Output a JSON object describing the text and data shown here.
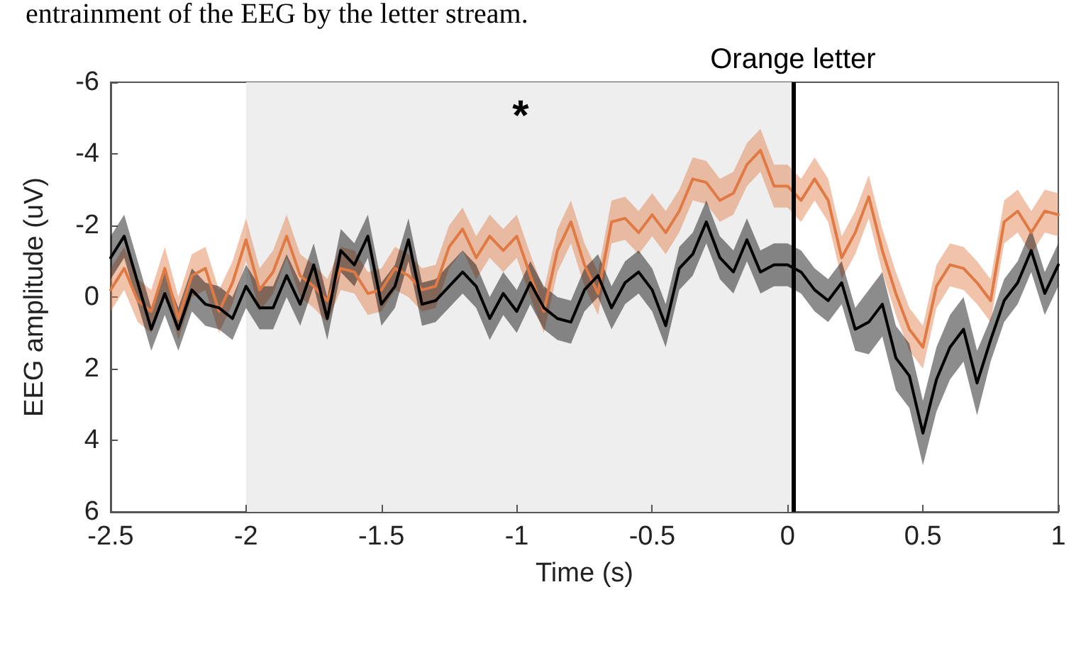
{
  "chart_data": {
    "type": "line",
    "xlabel": "Time (s)",
    "ylabel": "EEG amplitude (uV)",
    "subtitle": "entrainment of the EEG by the letter stream.",
    "annotations": [
      "*"
    ],
    "x": [
      -2.5,
      -2.45,
      -2.4,
      -2.35,
      -2.3,
      -2.25,
      -2.2,
      -2.15,
      -2.1,
      -2.05,
      -2,
      -1.95,
      -1.9,
      -1.85,
      -1.8,
      -1.75,
      -1.7,
      -1.65,
      -1.6,
      -1.55,
      -1.5,
      -1.45,
      -1.4,
      -1.35,
      -1.3,
      -1.25,
      -1.2,
      -1.15,
      -1.1,
      -1.05,
      -1,
      -0.95,
      -0.9,
      -0.85,
      -0.8,
      -0.75,
      -0.7,
      -0.65,
      -0.6,
      -0.55,
      -0.5,
      -0.45,
      -0.4,
      -0.35,
      -0.3,
      -0.25,
      -0.2,
      -0.15,
      -0.1,
      -0.05,
      0,
      0.05,
      0.1,
      0.15,
      0.2,
      0.25,
      0.3,
      0.35,
      0.4,
      0.45,
      0.5,
      0.55,
      0.6,
      0.65,
      0.7,
      0.75,
      0.8,
      0.85,
      0.9,
      0.95,
      1
    ],
    "series": [
      {
        "color": "#e07a45",
        "values": [
          -0.2,
          -0.8,
          0.1,
          0.4,
          -0.8,
          0.6,
          -0.6,
          -0.8,
          0.4,
          -0.4,
          -1.6,
          -0.2,
          -0.7,
          -1.7,
          -0.6,
          -0.3,
          0.1,
          -0.8,
          -0.7,
          -0.1,
          -0.2,
          -0.8,
          -0.6,
          -0.2,
          -0.3,
          -1.4,
          -1.9,
          -1.1,
          -1.7,
          -1.3,
          -1.7,
          -0.6,
          0.4,
          -1.3,
          -2.1,
          -0.9,
          -0.1,
          -2.1,
          -2.2,
          -1.8,
          -2.3,
          -1.8,
          -2.4,
          -3.3,
          -3.2,
          -2.7,
          -2.9,
          -3.7,
          -4.1,
          -3.1,
          -3.1,
          -2.7,
          -3.3,
          -2.7,
          -1.1,
          -1.8,
          -2.8,
          -1.3,
          -0.1,
          0.9,
          1.4,
          -0.3,
          -0.9,
          -0.8,
          -0.4,
          0.1,
          -2.1,
          -2.4,
          -1.8,
          -2.4,
          -2.3
        ],
        "lower": [
          -0.8,
          -1.4,
          -0.5,
          -0.2,
          -1.4,
          0.0,
          -1.2,
          -1.4,
          -0.2,
          -1.0,
          -2.2,
          -0.8,
          -1.3,
          -2.3,
          -1.2,
          -0.9,
          -0.5,
          -1.4,
          -1.3,
          -0.7,
          -0.8,
          -1.4,
          -1.2,
          -0.8,
          -0.9,
          -2.0,
          -2.5,
          -1.7,
          -2.3,
          -1.9,
          -2.3,
          -1.2,
          -0.2,
          -1.9,
          -2.7,
          -1.5,
          -0.7,
          -2.7,
          -2.8,
          -2.4,
          -2.9,
          -2.4,
          -3.0,
          -3.9,
          -3.8,
          -3.3,
          -3.5,
          -4.3,
          -4.7,
          -3.7,
          -3.7,
          -3.3,
          -3.9,
          -3.3,
          -1.7,
          -2.4,
          -3.4,
          -1.9,
          -0.7,
          0.3,
          0.8,
          -0.9,
          -1.5,
          -1.4,
          -1.0,
          -0.5,
          -2.7,
          -3.0,
          -2.4,
          -3.0,
          -2.9
        ],
        "upper": [
          0.4,
          -0.2,
          0.7,
          1.0,
          -0.2,
          1.2,
          0.0,
          -0.2,
          1.0,
          0.2,
          -1.0,
          0.4,
          -0.1,
          -1.1,
          0.0,
          0.3,
          0.7,
          -0.2,
          -0.1,
          0.5,
          0.4,
          -0.2,
          0.0,
          0.4,
          0.3,
          -0.8,
          -1.3,
          -0.5,
          -1.1,
          -0.7,
          -1.1,
          0.0,
          1.0,
          -0.7,
          -1.5,
          -0.3,
          0.5,
          -1.5,
          -1.6,
          -1.2,
          -1.7,
          -1.2,
          -1.8,
          -2.7,
          -2.6,
          -2.1,
          -2.3,
          -3.1,
          -3.5,
          -2.5,
          -2.5,
          -2.1,
          -2.7,
          -2.1,
          -0.5,
          -1.2,
          -2.2,
          -0.7,
          0.5,
          1.5,
          2.0,
          0.3,
          -0.3,
          -0.2,
          0.2,
          0.7,
          -1.5,
          -1.8,
          -1.2,
          -1.8,
          -1.7
        ]
      },
      {
        "color": "#000000",
        "values": [
          -1.1,
          -1.7,
          -0.4,
          0.9,
          -0.1,
          0.9,
          -0.2,
          0.2,
          0.3,
          0.6,
          -0.3,
          0.3,
          0.3,
          -0.6,
          0.2,
          -0.9,
          0.6,
          -1.3,
          -0.9,
          -1.7,
          0.2,
          -0.3,
          -1.6,
          0.2,
          0.1,
          -0.3,
          -0.7,
          -0.3,
          0.6,
          -0.1,
          0.4,
          -0.4,
          0.3,
          0.6,
          0.7,
          -0.2,
          -0.6,
          0.3,
          -0.4,
          -0.7,
          -0.2,
          0.8,
          -0.8,
          -1.2,
          -2.1,
          -1.1,
          -0.7,
          -1.6,
          -0.7,
          -0.9,
          -0.9,
          -0.7,
          -0.2,
          0.1,
          -0.4,
          0.9,
          0.7,
          0.2,
          1.7,
          2.2,
          3.8,
          2.3,
          1.4,
          0.9,
          2.4,
          1.2,
          0.1,
          -0.4,
          -1.3,
          -0.1,
          -0.9
        ],
        "lower": [
          -1.7,
          -2.3,
          -1.0,
          0.3,
          -0.7,
          0.3,
          -0.8,
          -0.4,
          -0.3,
          0.0,
          -0.9,
          -0.3,
          -0.3,
          -1.2,
          -0.4,
          -1.5,
          0.0,
          -1.9,
          -1.5,
          -2.3,
          -0.4,
          -0.9,
          -2.2,
          -0.4,
          -0.5,
          -0.9,
          -1.3,
          -0.9,
          0.0,
          -0.7,
          -0.2,
          -1.0,
          -0.3,
          0.0,
          0.1,
          -0.8,
          -1.2,
          -0.3,
          -1.0,
          -1.3,
          -0.8,
          0.2,
          -1.4,
          -1.8,
          -2.7,
          -1.7,
          -1.3,
          -2.2,
          -1.3,
          -1.5,
          -1.5,
          -1.3,
          -0.8,
          -0.5,
          -1.0,
          0.3,
          -0.2,
          -0.7,
          0.8,
          1.3,
          2.9,
          1.4,
          0.5,
          0.0,
          1.5,
          0.6,
          -0.5,
          -1.0,
          -1.9,
          -0.7,
          -1.5
        ],
        "upper": [
          -0.5,
          -1.1,
          0.2,
          1.5,
          0.5,
          1.5,
          0.4,
          0.8,
          0.9,
          1.2,
          0.3,
          0.9,
          0.9,
          0.0,
          0.8,
          -0.3,
          1.2,
          -0.7,
          -0.3,
          -1.1,
          0.8,
          0.3,
          -1.0,
          0.8,
          0.7,
          0.3,
          -0.1,
          0.3,
          1.2,
          0.5,
          1.0,
          0.2,
          0.9,
          1.2,
          1.3,
          0.4,
          0.0,
          0.9,
          0.2,
          -0.1,
          0.4,
          1.4,
          -0.2,
          -0.6,
          -1.5,
          -0.5,
          -0.1,
          -1.0,
          -0.1,
          -0.3,
          -0.3,
          -0.1,
          0.4,
          0.7,
          0.2,
          1.5,
          1.6,
          1.1,
          2.6,
          3.1,
          4.7,
          3.2,
          2.3,
          1.8,
          3.3,
          1.8,
          0.7,
          0.2,
          -0.7,
          0.5,
          -0.3
        ]
      }
    ],
    "xlim": [
      -2.5,
      1
    ],
    "xticks": [
      -2.5,
      -2,
      -1.5,
      -1,
      -0.5,
      0,
      0.5,
      1
    ],
    "ylim": [
      6,
      -6
    ],
    "yticks": [
      -6,
      -4,
      -2,
      0,
      2,
      4,
      6
    ],
    "bands": [
      {
        "axis": "x",
        "from": -2,
        "to": 0.02,
        "color": "#eeeeee"
      }
    ],
    "ref_lines": [
      {
        "axis": "x",
        "value": 0.02,
        "label": "Orange letter",
        "color": "#000000"
      }
    ],
    "grid": false
  }
}
